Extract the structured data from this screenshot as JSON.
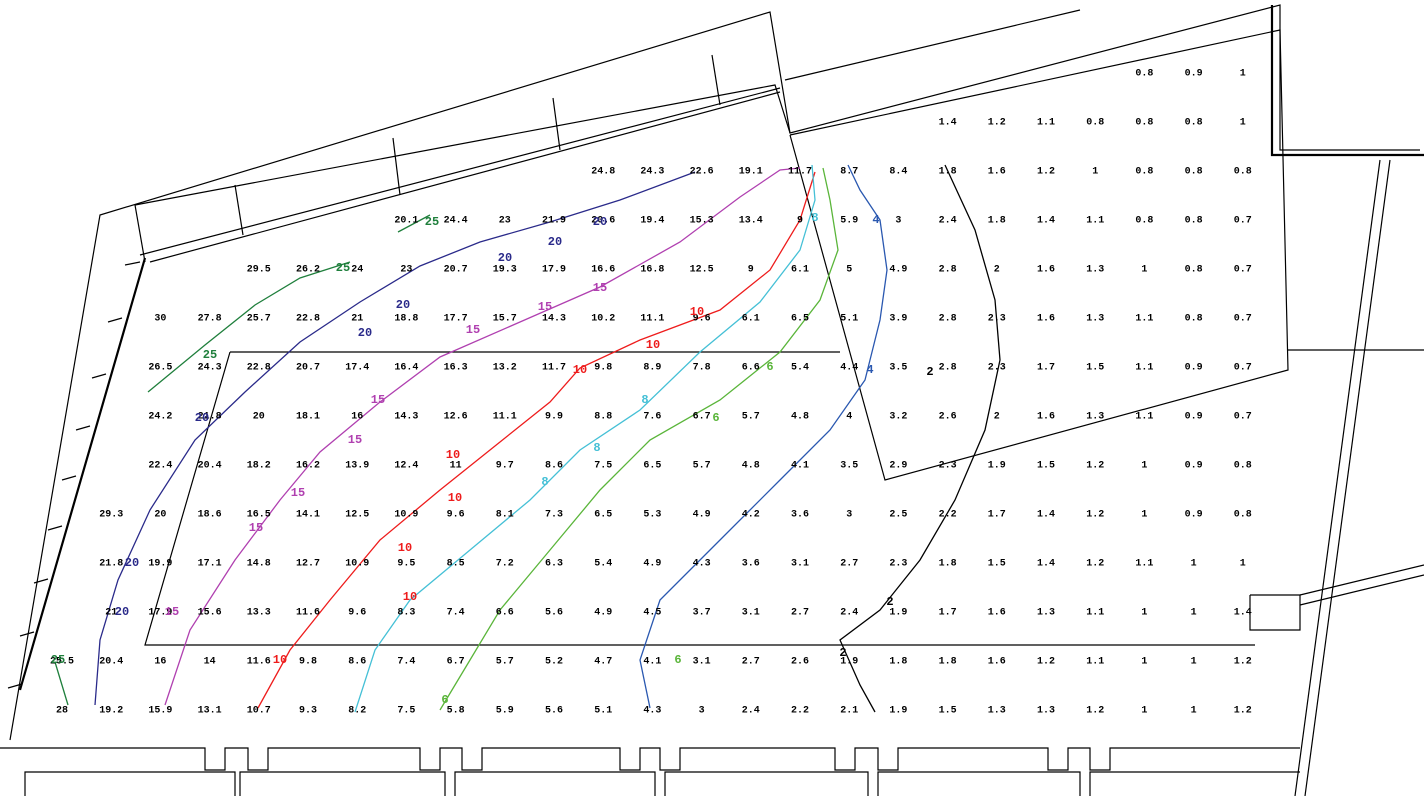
{
  "contours": [
    {
      "label": "25",
      "color": "#1f7f3c"
    },
    {
      "label": "20",
      "color": "#2a2a8a"
    },
    {
      "label": "15",
      "color": "#b040b0"
    },
    {
      "label": "10",
      "color": "#ee1c1c"
    },
    {
      "label": "8",
      "color": "#45c0d6"
    },
    {
      "label": "6",
      "color": "#5ab53a"
    },
    {
      "label": "4",
      "color": "#2a58b0"
    },
    {
      "label": "2",
      "color": "#000000"
    }
  ],
  "grid": {
    "rows": [
      [
        null,
        null,
        null,
        null,
        null,
        null,
        null,
        null,
        null,
        null,
        null,
        null,
        null,
        null,
        null,
        null,
        null,
        null,
        null,
        null,
        null,
        null,
        0.8,
        0.9,
        1.0
      ],
      [
        null,
        null,
        null,
        null,
        null,
        null,
        null,
        null,
        null,
        null,
        null,
        null,
        null,
        null,
        null,
        null,
        null,
        null,
        1.4,
        1.2,
        1.1,
        0.8,
        0.8,
        0.8,
        1.0
      ],
      [
        null,
        null,
        null,
        null,
        null,
        null,
        null,
        null,
        null,
        null,
        null,
        24.8,
        24.3,
        22.6,
        19.1,
        11.7,
        8.7,
        8.4,
        1.8,
        1.6,
        1.2,
        1.0,
        0.8,
        0.8,
        0.8
      ],
      [
        null,
        null,
        null,
        null,
        null,
        null,
        null,
        20.1,
        24.4,
        23.0,
        21.9,
        20.6,
        19.4,
        15.3,
        13.4,
        9.0,
        5.9,
        3.0,
        2.4,
        1.8,
        1.4,
        1.1,
        0.8,
        0.8,
        0.7
      ],
      [
        null,
        null,
        null,
        null,
        29.5,
        26.2,
        24.0,
        23.0,
        20.7,
        19.3,
        17.9,
        16.6,
        16.8,
        12.5,
        9.0,
        6.1,
        5.0,
        4.9,
        2.8,
        2.0,
        1.6,
        1.3,
        1.0,
        0.8,
        0.7
      ],
      [
        null,
        null,
        30.0,
        27.8,
        25.7,
        22.8,
        21.0,
        18.8,
        17.7,
        15.7,
        14.3,
        10.2,
        11.1,
        9.6,
        6.1,
        6.5,
        5.1,
        3.9,
        2.8,
        2.3,
        1.6,
        1.3,
        1.1,
        0.8,
        0.7
      ],
      [
        null,
        null,
        26.5,
        24.3,
        22.8,
        20.7,
        17.4,
        16.4,
        16.3,
        13.2,
        11.7,
        9.8,
        8.9,
        7.8,
        6.6,
        5.4,
        4.4,
        3.5,
        2.8,
        2.3,
        1.7,
        1.5,
        1.1,
        0.9,
        0.7
      ],
      [
        null,
        null,
        24.2,
        21.8,
        20.0,
        18.1,
        16.0,
        14.3,
        12.6,
        11.1,
        9.9,
        8.8,
        7.6,
        6.7,
        5.7,
        4.8,
        4.0,
        3.2,
        2.6,
        2.0,
        1.6,
        1.3,
        1.1,
        0.9,
        0.7
      ],
      [
        null,
        null,
        22.4,
        20.4,
        18.2,
        16.2,
        13.9,
        12.4,
        11.0,
        9.7,
        8.6,
        7.5,
        6.5,
        5.7,
        4.8,
        4.1,
        3.5,
        2.9,
        2.3,
        1.9,
        1.5,
        1.2,
        1.0,
        0.9,
        0.8
      ],
      [
        null,
        29.3,
        20.0,
        18.6,
        16.5,
        14.1,
        12.5,
        10.9,
        9.6,
        8.1,
        7.3,
        6.5,
        5.3,
        4.9,
        4.2,
        3.6,
        3.0,
        2.5,
        2.2,
        1.7,
        1.4,
        1.2,
        1.0,
        0.9,
        0.8
      ],
      [
        null,
        21.8,
        19.9,
        17.1,
        14.8,
        12.7,
        10.9,
        9.5,
        8.5,
        7.2,
        6.3,
        5.4,
        4.9,
        4.3,
        3.6,
        3.1,
        2.7,
        2.3,
        1.8,
        1.5,
        1.4,
        1.2,
        1.1,
        1.0,
        1.0
      ],
      [
        null,
        21.0,
        17.9,
        15.6,
        13.3,
        11.6,
        9.6,
        8.3,
        7.4,
        6.6,
        5.6,
        4.9,
        4.5,
        3.7,
        3.1,
        2.7,
        2.4,
        1.9,
        1.7,
        1.6,
        1.3,
        1.1,
        1.0,
        1.0,
        1.4
      ],
      [
        25.5,
        20.4,
        16.0,
        14.0,
        11.6,
        9.8,
        8.6,
        7.4,
        6.7,
        5.7,
        5.2,
        4.7,
        4.1,
        3.1,
        2.7,
        2.6,
        1.9,
        1.8,
        1.8,
        1.6,
        1.2,
        1.1,
        1.0,
        1.0,
        1.2
      ],
      [
        28.0,
        19.2,
        15.9,
        13.1,
        10.7,
        9.3,
        8.2,
        7.5,
        5.8,
        5.9,
        5.6,
        5.1,
        4.3,
        3.0,
        2.4,
        2.2,
        2.1,
        1.9,
        1.5,
        1.3,
        1.3,
        1.2,
        1.0,
        1.0,
        1.2
      ]
    ]
  }
}
